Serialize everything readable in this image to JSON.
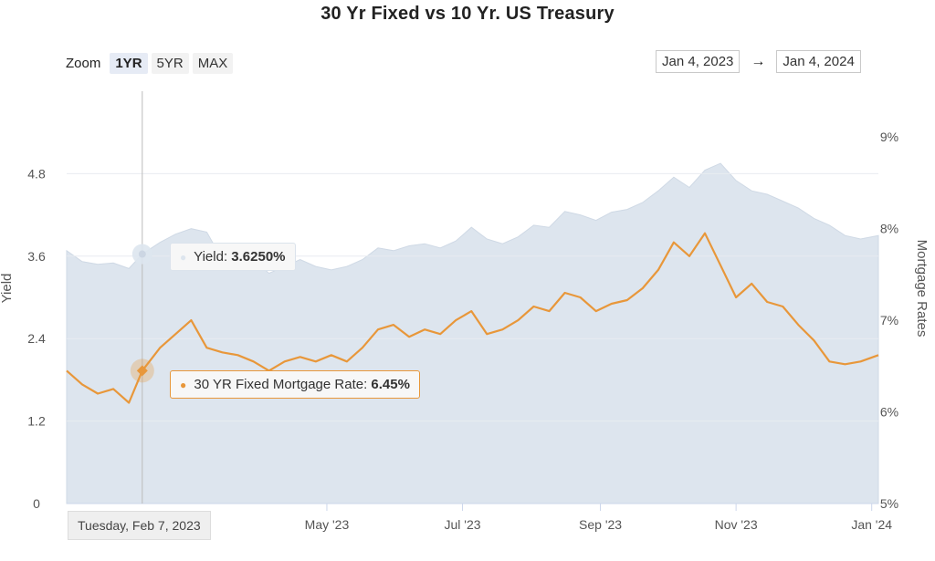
{
  "chart_data": {
    "type": "line",
    "title": "30 Yr Fixed vs 10 Yr. US Treasury",
    "zoom": {
      "label": "Zoom",
      "options": [
        "1YR",
        "5YR",
        "MAX"
      ],
      "selected": "1YR"
    },
    "range": {
      "from": "Jan 4, 2023",
      "arrow": "→",
      "to": "Jan 4, 2024"
    },
    "x_ticks": [
      "May '23",
      "Jul '23",
      "Sep '23",
      "Nov '23",
      "Jan '24"
    ],
    "left_axis": {
      "label": "Yield",
      "ticks": [
        "0",
        "1.2",
        "2.4",
        "3.6",
        "4.8"
      ],
      "ylim": [
        0,
        6.0
      ]
    },
    "right_axis": {
      "label": "Mortgage Rates",
      "ticks": [
        "5%",
        "6%",
        "7%",
        "8%",
        "9%"
      ],
      "ylim": [
        5,
        9.5
      ]
    },
    "series": [
      {
        "name": "Yield",
        "kind": "area",
        "color": "#dde5ee",
        "x": [
          "2023-01-04",
          "2023-01-11",
          "2023-01-18",
          "2023-01-25",
          "2023-02-01",
          "2023-02-07",
          "2023-02-15",
          "2023-02-22",
          "2023-03-01",
          "2023-03-08",
          "2023-03-15",
          "2023-03-22",
          "2023-03-29",
          "2023-04-05",
          "2023-04-12",
          "2023-04-19",
          "2023-04-26",
          "2023-05-03",
          "2023-05-10",
          "2023-05-17",
          "2023-05-24",
          "2023-05-31",
          "2023-06-07",
          "2023-06-14",
          "2023-06-21",
          "2023-06-28",
          "2023-07-05",
          "2023-07-12",
          "2023-07-19",
          "2023-07-26",
          "2023-08-02",
          "2023-08-09",
          "2023-08-16",
          "2023-08-23",
          "2023-08-30",
          "2023-09-06",
          "2023-09-13",
          "2023-09-20",
          "2023-09-27",
          "2023-10-04",
          "2023-10-11",
          "2023-10-18",
          "2023-10-25",
          "2023-11-01",
          "2023-11-08",
          "2023-11-15",
          "2023-11-22",
          "2023-11-29",
          "2023-12-06",
          "2023-12-13",
          "2023-12-20",
          "2023-12-27",
          "2024-01-04"
        ],
        "values": [
          3.68,
          3.52,
          3.48,
          3.5,
          3.42,
          3.63,
          3.8,
          3.92,
          4.0,
          3.95,
          3.55,
          3.55,
          3.55,
          3.35,
          3.45,
          3.55,
          3.45,
          3.4,
          3.45,
          3.55,
          3.72,
          3.68,
          3.75,
          3.78,
          3.72,
          3.82,
          4.02,
          3.85,
          3.78,
          3.88,
          4.05,
          4.02,
          4.25,
          4.2,
          4.12,
          4.24,
          4.28,
          4.38,
          4.55,
          4.75,
          4.6,
          4.85,
          4.95,
          4.7,
          4.55,
          4.5,
          4.4,
          4.3,
          4.15,
          4.05,
          3.9,
          3.85,
          3.9
        ]
      },
      {
        "name": "30 YR Fixed Mortgage Rate",
        "kind": "line",
        "color": "#e8973a",
        "x": [
          "2023-01-04",
          "2023-01-11",
          "2023-01-18",
          "2023-01-25",
          "2023-02-01",
          "2023-02-07",
          "2023-02-15",
          "2023-02-22",
          "2023-03-01",
          "2023-03-08",
          "2023-03-15",
          "2023-03-22",
          "2023-03-29",
          "2023-04-05",
          "2023-04-12",
          "2023-04-19",
          "2023-04-26",
          "2023-05-03",
          "2023-05-10",
          "2023-05-17",
          "2023-05-24",
          "2023-05-31",
          "2023-06-07",
          "2023-06-14",
          "2023-06-21",
          "2023-06-28",
          "2023-07-05",
          "2023-07-12",
          "2023-07-19",
          "2023-07-26",
          "2023-08-02",
          "2023-08-09",
          "2023-08-16",
          "2023-08-23",
          "2023-08-30",
          "2023-09-06",
          "2023-09-13",
          "2023-09-20",
          "2023-09-27",
          "2023-10-04",
          "2023-10-11",
          "2023-10-18",
          "2023-10-25",
          "2023-11-01",
          "2023-11-08",
          "2023-11-15",
          "2023-11-22",
          "2023-11-29",
          "2023-12-06",
          "2023-12-13",
          "2023-12-20",
          "2023-12-27",
          "2024-01-04"
        ],
        "values": [
          6.45,
          6.3,
          6.2,
          6.25,
          6.1,
          6.45,
          6.7,
          6.85,
          7.0,
          6.7,
          6.65,
          6.62,
          6.55,
          6.45,
          6.55,
          6.6,
          6.55,
          6.62,
          6.55,
          6.7,
          6.9,
          6.95,
          6.82,
          6.9,
          6.85,
          7.0,
          7.1,
          6.85,
          6.9,
          7.0,
          7.15,
          7.1,
          7.3,
          7.25,
          7.1,
          7.18,
          7.22,
          7.35,
          7.55,
          7.85,
          7.7,
          7.95,
          7.6,
          7.25,
          7.4,
          7.2,
          7.15,
          6.95,
          6.78,
          6.55,
          6.52,
          6.55,
          6.62
        ]
      }
    ],
    "crosshair_date": "2023-02-07",
    "tooltips": {
      "yield": {
        "label": "Yield:",
        "value": "3.6250%"
      },
      "mortgage": {
        "label": "30 YR Fixed Mortgage Rate:",
        "value": "6.45%"
      },
      "date": "Tuesday, Feb 7, 2023"
    }
  }
}
